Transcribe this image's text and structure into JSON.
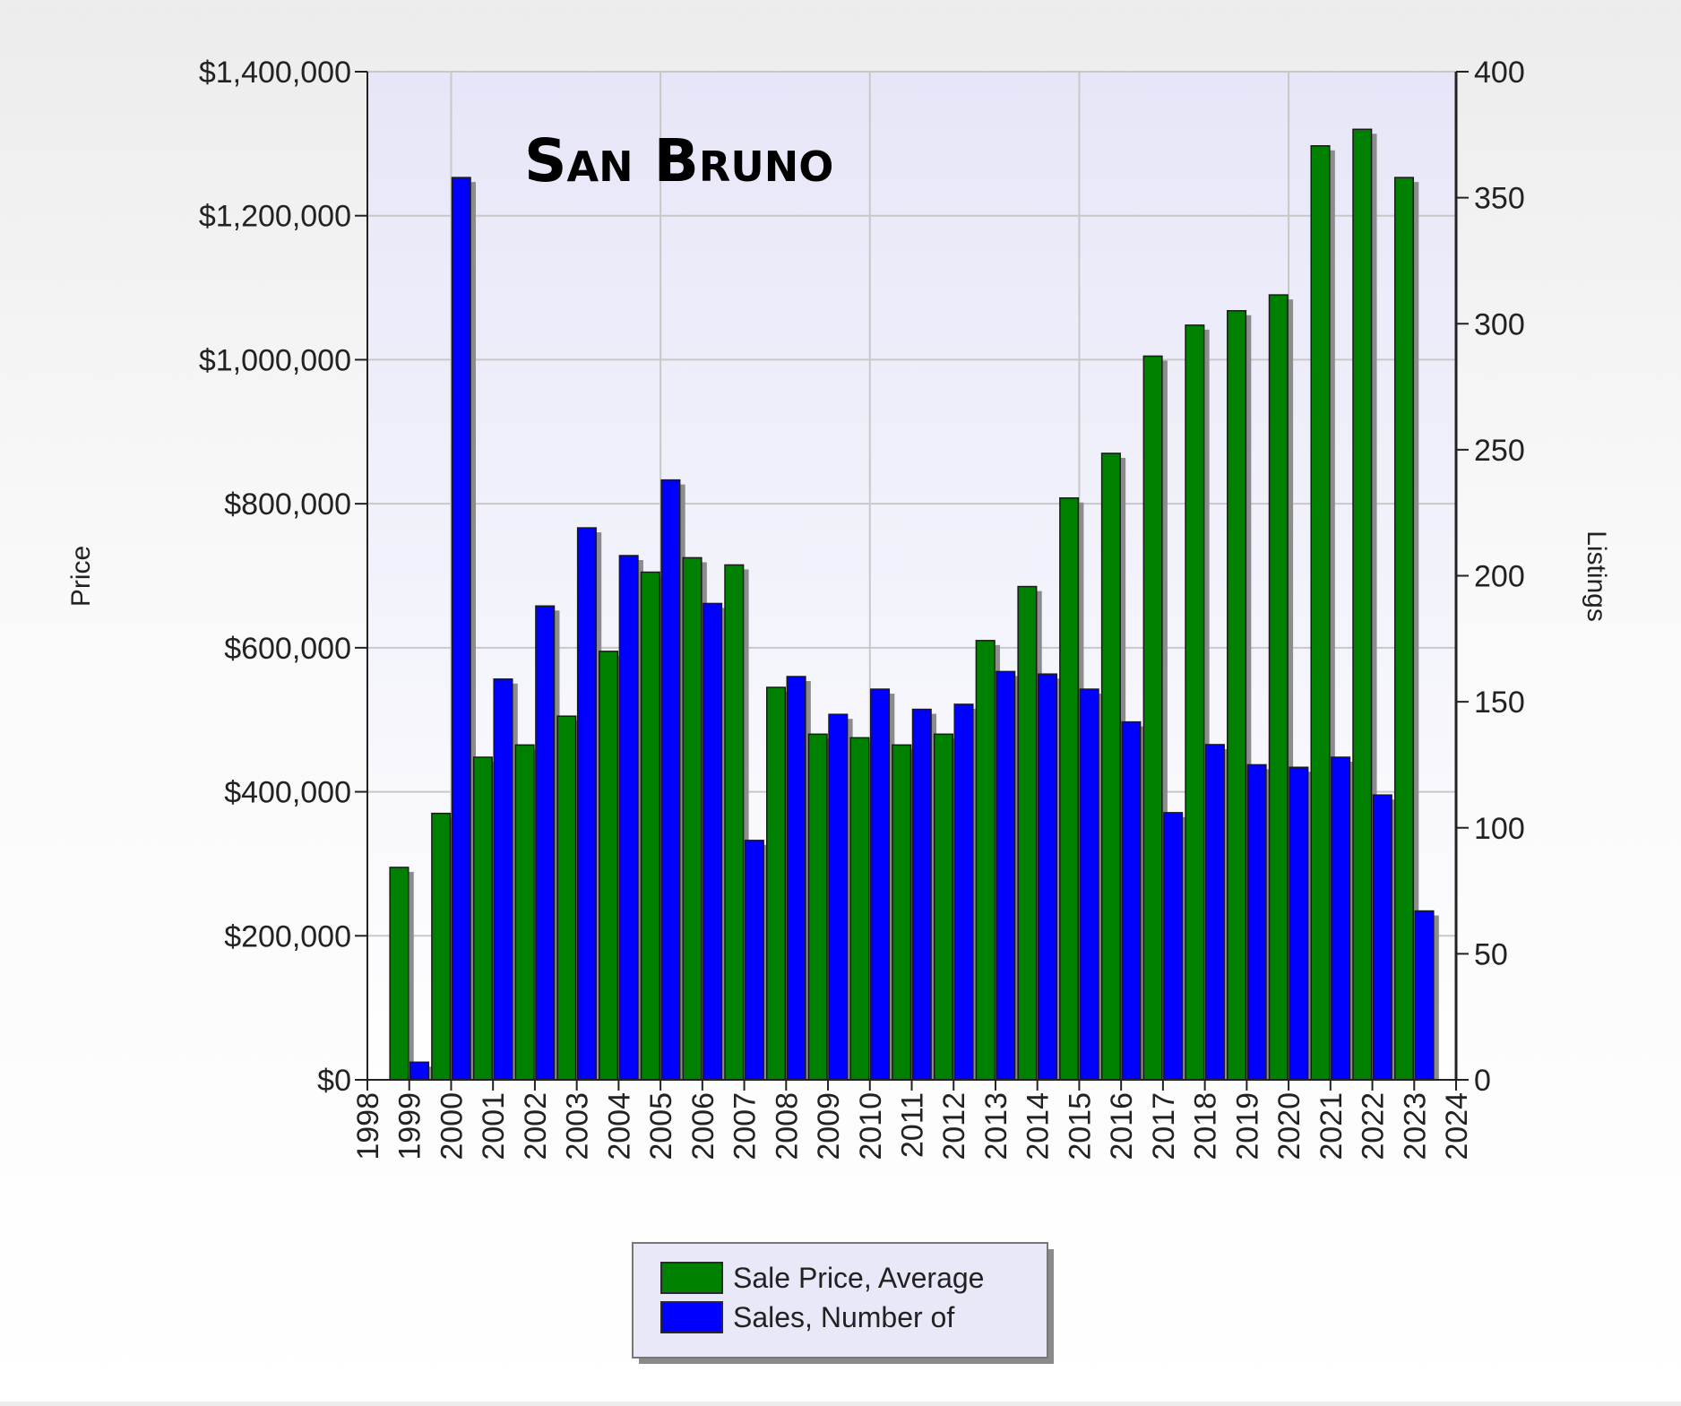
{
  "chart_data": {
    "type": "bar",
    "title": "San Bruno",
    "ylabel": "Price",
    "y2label": "Listings",
    "xlabel": "",
    "ylim": [
      0,
      1400000
    ],
    "y2lim": [
      0,
      400
    ],
    "xlim": [
      1998,
      2024
    ],
    "x_ticks": [
      "1998",
      "1999",
      "2000",
      "2001",
      "2002",
      "2003",
      "2004",
      "2005",
      "2006",
      "2007",
      "2008",
      "2009",
      "2010",
      "2011",
      "2012",
      "2013",
      "2014",
      "2015",
      "2016",
      "2017",
      "2018",
      "2019",
      "2020",
      "2021",
      "2022",
      "2023",
      "2024"
    ],
    "y_ticks": [
      "$0",
      "$200,000",
      "$400,000",
      "$600,000",
      "$800,000",
      "$1,000,000",
      "$1,200,000",
      "$1,400,000"
    ],
    "y2_ticks": [
      "0",
      "50",
      "100",
      "150",
      "200",
      "250",
      "300",
      "350",
      "400"
    ],
    "grid": true,
    "legend_position": "bottom-center",
    "categories": [
      1999,
      2000,
      2001,
      2002,
      2003,
      2004,
      2005,
      2006,
      2007,
      2008,
      2009,
      2010,
      2011,
      2012,
      2013,
      2014,
      2015,
      2016,
      2017,
      2018,
      2019,
      2020,
      2021,
      2022,
      2023
    ],
    "series": [
      {
        "name": "Sale Price, Average",
        "axis": "left",
        "color": "#008000",
        "values": [
          295000,
          370000,
          448000,
          465000,
          505000,
          595000,
          705000,
          725000,
          715000,
          545000,
          480000,
          475000,
          465000,
          480000,
          610000,
          685000,
          808000,
          870000,
          1005000,
          1048000,
          1068000,
          1090000,
          1297000,
          1320000,
          1253000
        ]
      },
      {
        "name": "Sales, Number of",
        "axis": "right",
        "color": "#0000ff",
        "values": [
          7,
          358,
          159,
          188,
          219,
          208,
          238,
          189,
          95,
          160,
          145,
          155,
          147,
          149,
          162,
          161,
          155,
          142,
          106,
          133,
          125,
          124,
          128,
          113,
          67
        ]
      }
    ]
  },
  "colors": {
    "plot_background_top": "#e6e6f8",
    "plot_background_bottom": "#ffffff",
    "grid": "#c8c8c8",
    "legend_background": "#e8e8f8"
  }
}
